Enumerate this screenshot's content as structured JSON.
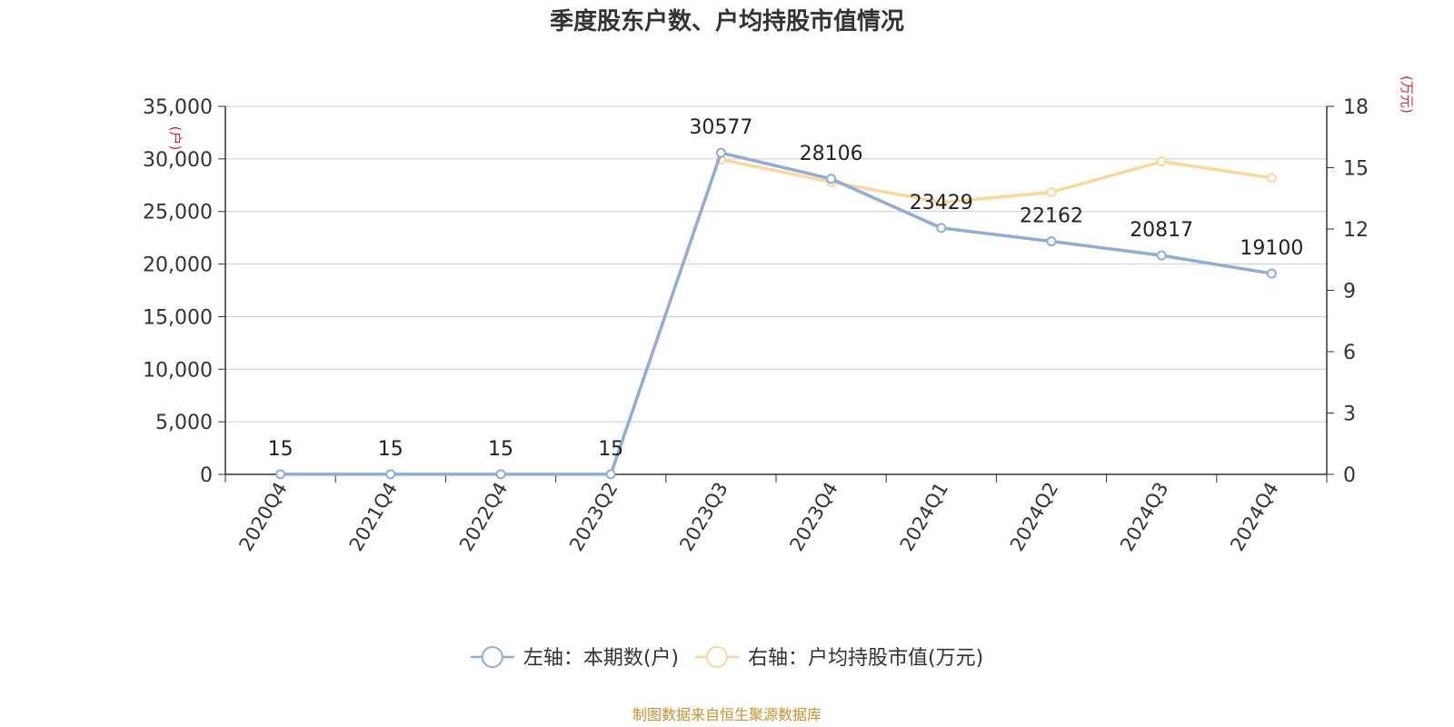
{
  "chart_data": {
    "type": "line",
    "title": "季度股东户数、户均持股市值情况",
    "categories": [
      "2020Q4",
      "2021Q4",
      "2022Q4",
      "2023Q2",
      "2023Q3",
      "2023Q4",
      "2024Q1",
      "2024Q2",
      "2024Q3",
      "2024Q4"
    ],
    "left_axis": {
      "unit": "(户)",
      "ylim": [
        0,
        35000
      ],
      "ticks": [
        "0",
        "5,000",
        "10,000",
        "15,000",
        "20,000",
        "25,000",
        "30,000",
        "35,000"
      ]
    },
    "right_axis": {
      "unit": "(万元)",
      "ylim": [
        0,
        18
      ],
      "ticks": [
        "0",
        "3",
        "6",
        "9",
        "12",
        "15",
        "18"
      ]
    },
    "series": [
      {
        "name": "左轴：本期数(户)",
        "axis": "left",
        "color": "#8eadd8",
        "values": [
          15,
          15,
          15,
          15,
          30577,
          28106,
          23429,
          22162,
          20817,
          19100
        ],
        "labels": [
          "15",
          "15",
          "15",
          "15",
          "30577",
          "28106",
          "23429",
          "22162",
          "20817",
          "19100"
        ]
      },
      {
        "name": "右轴：户均持股市值(万元)",
        "axis": "right",
        "color": "#fbd898",
        "values": [
          null,
          null,
          null,
          null,
          15.4,
          14.3,
          13.3,
          13.8,
          15.3,
          14.5
        ]
      }
    ],
    "grid": true,
    "legend_position": "bottom-center"
  },
  "source_text": "制图数据来自恒生聚源数据库"
}
